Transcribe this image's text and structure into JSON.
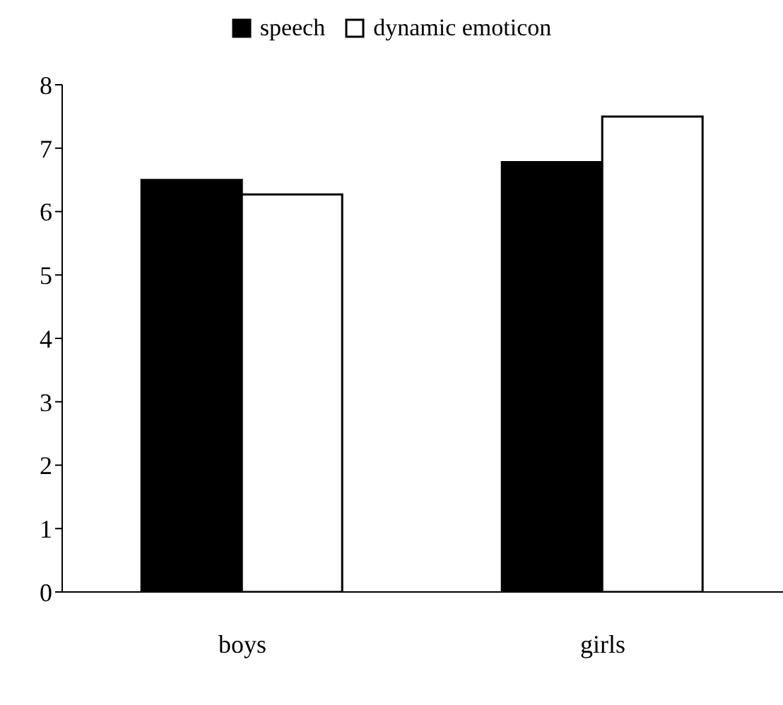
{
  "chart_data": {
    "type": "bar",
    "categories": [
      "boys",
      "girls"
    ],
    "series": [
      {
        "name": "speech",
        "color": "#000000",
        "values": [
          6.5,
          6.78
        ]
      },
      {
        "name": "dynamic emoticon",
        "color": "#ffffff",
        "values": [
          6.27,
          7.5
        ]
      }
    ],
    "ylim": [
      0,
      8
    ],
    "yticks": [
      0,
      1,
      2,
      3,
      4,
      5,
      6,
      7,
      8
    ],
    "legend": "top"
  }
}
